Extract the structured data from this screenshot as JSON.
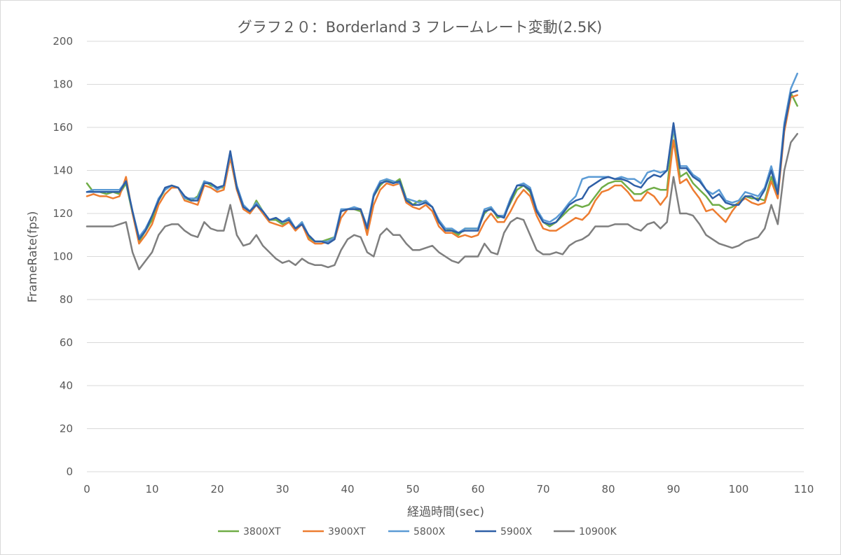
{
  "chart_data": {
    "type": "line",
    "title": "グラフ２０：Borderland 3 フレームレート変動(2.5K)",
    "xlabel": "経過時間(sec)",
    "ylabel": "FrameRate(fps)",
    "xlim": [
      0,
      110
    ],
    "ylim": [
      0,
      200
    ],
    "xticks": [
      "0",
      "10",
      "20",
      "30",
      "40",
      "50",
      "60",
      "70",
      "80",
      "90",
      "100",
      "110"
    ],
    "yticks": [
      "0",
      "20",
      "40",
      "60",
      "80",
      "100",
      "120",
      "140",
      "160",
      "180",
      "200"
    ],
    "grid": true,
    "legend_position": "bottom",
    "x": [
      0,
      1,
      2,
      3,
      4,
      5,
      6,
      7,
      8,
      9,
      10,
      11,
      12,
      13,
      14,
      15,
      16,
      17,
      18,
      19,
      20,
      21,
      22,
      23,
      24,
      25,
      26,
      27,
      28,
      29,
      30,
      31,
      32,
      33,
      34,
      35,
      36,
      37,
      38,
      39,
      40,
      41,
      42,
      43,
      44,
      45,
      46,
      47,
      48,
      49,
      50,
      51,
      52,
      53,
      54,
      55,
      56,
      57,
      58,
      59,
      60,
      61,
      62,
      63,
      64,
      65,
      66,
      67,
      68,
      69,
      70,
      71,
      72,
      73,
      74,
      75,
      76,
      77,
      78,
      79,
      80,
      81,
      82,
      83,
      84,
      85,
      86,
      87,
      88,
      89,
      90,
      91,
      92,
      93,
      94,
      95,
      96,
      97,
      98,
      99,
      100,
      101,
      102,
      103,
      104,
      105,
      106,
      107,
      108,
      109
    ],
    "series": [
      {
        "name": "3800XT",
        "color": "#70ad47",
        "values": [
          134,
          130,
          130,
          129,
          130,
          129,
          134,
          120,
          107,
          112,
          117,
          126,
          131,
          133,
          132,
          127,
          126,
          128,
          135,
          133,
          132,
          132,
          146,
          131,
          124,
          120,
          126,
          121,
          117,
          117,
          115,
          116,
          113,
          116,
          109,
          107,
          107,
          108,
          109,
          121,
          122,
          122,
          121,
          112,
          128,
          133,
          136,
          134,
          136,
          127,
          124,
          126,
          125,
          123,
          116,
          113,
          112,
          110,
          113,
          113,
          113,
          120,
          123,
          118,
          119,
          125,
          131,
          133,
          130,
          121,
          116,
          114,
          116,
          119,
          122,
          124,
          123,
          124,
          128,
          132,
          134,
          135,
          135,
          132,
          129,
          129,
          131,
          132,
          131,
          131,
          160,
          137,
          139,
          134,
          131,
          128,
          124,
          124,
          122,
          123,
          125,
          128,
          127,
          127,
          126,
          137,
          129,
          160,
          176,
          170
        ]
      },
      {
        "name": "3900XT",
        "color": "#ed7d31",
        "values": [
          128,
          129,
          128,
          128,
          127,
          128,
          137,
          120,
          106,
          110,
          115,
          124,
          129,
          132,
          132,
          126,
          125,
          124,
          133,
          132,
          130,
          131,
          146,
          131,
          122,
          120,
          124,
          120,
          116,
          115,
          114,
          116,
          112,
          115,
          108,
          106,
          106,
          107,
          108,
          118,
          122,
          122,
          122,
          110,
          124,
          131,
          134,
          133,
          134,
          125,
          123,
          122,
          124,
          121,
          114,
          111,
          111,
          109,
          110,
          109,
          110,
          116,
          120,
          116,
          116,
          121,
          127,
          131,
          128,
          119,
          113,
          112,
          112,
          114,
          116,
          118,
          117,
          120,
          126,
          130,
          131,
          133,
          133,
          130,
          126,
          126,
          130,
          128,
          124,
          128,
          154,
          134,
          136,
          131,
          127,
          121,
          122,
          119,
          116,
          121,
          125,
          127,
          125,
          124,
          125,
          135,
          127,
          158,
          174,
          175
        ]
      },
      {
        "name": "5800X",
        "color": "#5b9bd5",
        "values": [
          130,
          131,
          131,
          131,
          131,
          131,
          135,
          121,
          109,
          113,
          119,
          127,
          131,
          133,
          132,
          127,
          127,
          127,
          135,
          134,
          131,
          133,
          148,
          133,
          124,
          121,
          125,
          121,
          117,
          118,
          116,
          118,
          113,
          116,
          110,
          107,
          107,
          107,
          109,
          122,
          122,
          123,
          122,
          114,
          129,
          135,
          136,
          135,
          134,
          127,
          126,
          125,
          126,
          123,
          117,
          113,
          113,
          111,
          113,
          113,
          113,
          122,
          123,
          119,
          119,
          127,
          133,
          134,
          132,
          122,
          117,
          116,
          118,
          121,
          125,
          128,
          136,
          137,
          137,
          137,
          137,
          136,
          137,
          136,
          136,
          134,
          139,
          140,
          139,
          140,
          160,
          142,
          142,
          138,
          136,
          131,
          129,
          131,
          126,
          125,
          126,
          130,
          129,
          128,
          132,
          142,
          131,
          162,
          178,
          185
        ]
      },
      {
        "name": "5900X",
        "color": "#2e5fa6",
        "values": [
          130,
          130,
          130,
          130,
          130,
          130,
          135,
          121,
          108,
          112,
          119,
          126,
          132,
          133,
          132,
          128,
          126,
          126,
          134,
          134,
          132,
          133,
          149,
          132,
          123,
          121,
          124,
          121,
          117,
          118,
          116,
          117,
          113,
          115,
          110,
          107,
          107,
          106,
          108,
          121,
          122,
          122,
          122,
          113,
          128,
          134,
          135,
          134,
          135,
          126,
          124,
          124,
          125,
          123,
          116,
          112,
          112,
          111,
          112,
          112,
          112,
          121,
          122,
          119,
          118,
          126,
          133,
          133,
          131,
          121,
          116,
          115,
          116,
          120,
          124,
          126,
          127,
          132,
          134,
          136,
          137,
          136,
          136,
          135,
          133,
          132,
          136,
          138,
          137,
          140,
          162,
          141,
          141,
          137,
          135,
          131,
          127,
          129,
          125,
          124,
          124,
          128,
          128,
          126,
          131,
          140,
          129,
          160,
          176,
          177
        ]
      },
      {
        "name": "10900K",
        "color": "#7f7f7f",
        "values": [
          114,
          114,
          114,
          114,
          114,
          115,
          116,
          102,
          94,
          98,
          102,
          110,
          114,
          115,
          115,
          112,
          110,
          109,
          116,
          113,
          112,
          112,
          124,
          110,
          105,
          106,
          110,
          105,
          102,
          99,
          97,
          98,
          96,
          99,
          97,
          96,
          96,
          95,
          96,
          103,
          108,
          110,
          109,
          102,
          100,
          110,
          113,
          110,
          110,
          106,
          103,
          103,
          104,
          105,
          102,
          100,
          98,
          97,
          100,
          100,
          100,
          106,
          102,
          101,
          111,
          116,
          118,
          117,
          110,
          103,
          101,
          101,
          102,
          101,
          105,
          107,
          108,
          110,
          114,
          114,
          114,
          115,
          115,
          115,
          113,
          112,
          115,
          116,
          113,
          116,
          137,
          120,
          120,
          119,
          115,
          110,
          108,
          106,
          105,
          104,
          105,
          107,
          108,
          109,
          113,
          124,
          115,
          140,
          153,
          157
        ]
      }
    ]
  }
}
